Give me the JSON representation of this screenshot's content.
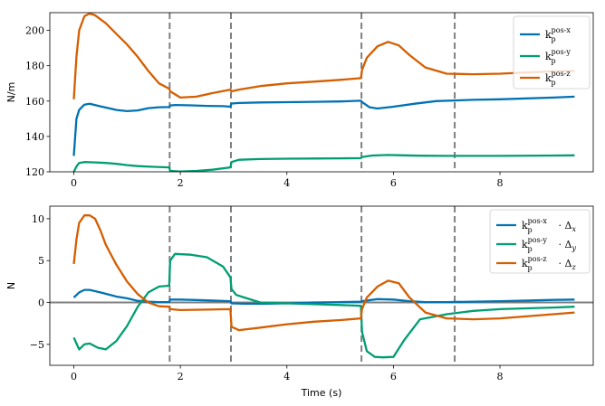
{
  "chart_data": [
    {
      "type": "line",
      "ylabel": "N/m",
      "xlabel": "",
      "xlim": [
        -0.45,
        9.75
      ],
      "ylim": [
        120,
        210
      ],
      "xticks": [
        0,
        2,
        4,
        6,
        8
      ],
      "yticks": [
        120,
        140,
        160,
        180,
        200
      ],
      "legend_position": "top-right",
      "grid": false,
      "vlines": [
        1.8,
        2.95,
        5.4,
        7.15
      ],
      "series": [
        {
          "legend_base": "k",
          "legend_sub": "p",
          "legend_sup": "pos-x",
          "color": "#0072b2",
          "x": [
            0,
            0.05,
            0.1,
            0.2,
            0.3,
            0.5,
            0.8,
            1.0,
            1.2,
            1.4,
            1.6,
            1.79,
            1.81,
            1.9,
            2.2,
            2.5,
            2.8,
            2.94,
            2.96,
            3.1,
            3.5,
            4.0,
            4.5,
            5.0,
            5.39,
            5.41,
            5.55,
            5.7,
            6.0,
            6.4,
            6.8,
            7.5,
            8.0,
            9.0,
            9.4
          ],
          "y": [
            129,
            150,
            155,
            158,
            158.5,
            157,
            155,
            154.3,
            154.7,
            156,
            156.5,
            156.6,
            157.5,
            157.8,
            157.6,
            157.3,
            157.1,
            156.8,
            158.6,
            158.9,
            159.2,
            159.4,
            159.6,
            159.8,
            160.2,
            159.5,
            156.5,
            155.8,
            156.8,
            158.5,
            160,
            160.7,
            161,
            162,
            162.5
          ]
        },
        {
          "legend_base": "k",
          "legend_sub": "p",
          "legend_sup": "pos-y",
          "color": "#009e73",
          "x": [
            0,
            0.05,
            0.1,
            0.2,
            0.4,
            0.6,
            0.8,
            1.0,
            1.2,
            1.5,
            1.79,
            1.81,
            2.0,
            2.3,
            2.6,
            2.94,
            2.96,
            3.1,
            3.5,
            4.0,
            4.5,
            5.0,
            5.39,
            5.41,
            5.6,
            5.9,
            6.2,
            6.5,
            7.0,
            8.0,
            9.0,
            9.4
          ],
          "y": [
            120,
            123,
            125,
            125.5,
            125.3,
            125,
            124.5,
            123.8,
            123.2,
            122.8,
            122.5,
            120.5,
            120.2,
            120.5,
            121.2,
            122.5,
            125.5,
            126.8,
            127.2,
            127.4,
            127.5,
            127.6,
            127.7,
            128.4,
            129.2,
            129.5,
            129.3,
            129.1,
            129,
            129,
            129.2,
            129.3
          ]
        },
        {
          "legend_base": "k",
          "legend_sub": "p",
          "legend_sup": "pos-z",
          "color": "#d55e00",
          "x": [
            0,
            0.05,
            0.1,
            0.2,
            0.3,
            0.4,
            0.6,
            0.8,
            1.0,
            1.2,
            1.4,
            1.6,
            1.79,
            1.81,
            2.0,
            2.3,
            2.6,
            2.94,
            2.96,
            3.1,
            3.5,
            4.0,
            4.5,
            5.0,
            5.39,
            5.41,
            5.5,
            5.7,
            5.9,
            6.1,
            6.3,
            6.6,
            7.0,
            7.5,
            8.0,
            8.5,
            9.0,
            9.4
          ],
          "y": [
            161,
            185,
            200,
            208,
            209.5,
            208.5,
            204,
            198,
            192,
            185,
            177,
            170,
            167,
            165.5,
            162,
            162.5,
            164.5,
            166.5,
            165.5,
            166.5,
            168.5,
            170,
            171,
            172,
            173,
            177.5,
            184.5,
            191,
            193.5,
            191.5,
            186,
            179,
            175.5,
            175.2,
            175.5,
            176.2,
            176.8,
            177
          ]
        }
      ]
    },
    {
      "type": "line",
      "ylabel": "N",
      "xlabel": "Time (s)",
      "xlim": [
        -0.45,
        9.75
      ],
      "ylim": [
        -7.5,
        11.5
      ],
      "xticks": [
        0,
        2,
        4,
        6,
        8
      ],
      "yticks": [
        -5,
        0,
        5,
        10
      ],
      "legend_position": "top-right",
      "grid": false,
      "hline": 0,
      "vlines": [
        1.8,
        2.95,
        5.4,
        7.15
      ],
      "series": [
        {
          "legend_base": "k",
          "legend_sub": "p",
          "legend_sup": "pos-x",
          "legend_delta": "x",
          "color": "#0072b2",
          "x": [
            0,
            0.1,
            0.2,
            0.3,
            0.5,
            0.8,
            1.0,
            1.2,
            1.4,
            1.6,
            1.79,
            1.81,
            2.0,
            2.5,
            2.94,
            2.96,
            3.2,
            3.6,
            4.0,
            4.5,
            5.0,
            5.39,
            5.41,
            5.7,
            6.0,
            6.3,
            6.6,
            7.0,
            7.5,
            8.0,
            9.0,
            9.4
          ],
          "y": [
            0.6,
            1.2,
            1.5,
            1.5,
            1.2,
            0.7,
            0.5,
            0.2,
            0.1,
            0.05,
            0.05,
            0.35,
            0.35,
            0.25,
            0.15,
            -0.1,
            -0.15,
            -0.15,
            -0.1,
            0.0,
            0.05,
            0.1,
            0.15,
            0.4,
            0.35,
            0.15,
            0.05,
            0.05,
            0.1,
            0.15,
            0.3,
            0.35
          ]
        },
        {
          "legend_base": "k",
          "legend_sub": "p",
          "legend_sup": "pos-y",
          "legend_delta": "y",
          "color": "#009e73",
          "x": [
            0,
            0.1,
            0.2,
            0.3,
            0.45,
            0.6,
            0.8,
            1.0,
            1.2,
            1.4,
            1.6,
            1.79,
            1.81,
            1.9,
            2.2,
            2.5,
            2.8,
            2.94,
            2.96,
            3.05,
            3.2,
            3.5,
            4.0,
            4.5,
            5.0,
            5.39,
            5.41,
            5.5,
            5.65,
            5.8,
            6.0,
            6.2,
            6.5,
            7.0,
            7.5,
            8.0,
            9.0,
            9.4
          ],
          "y": [
            -4.2,
            -5.6,
            -5.0,
            -4.9,
            -5.4,
            -5.6,
            -4.6,
            -2.8,
            -0.5,
            1.2,
            1.9,
            2.0,
            5.0,
            5.8,
            5.7,
            5.4,
            4.3,
            3.0,
            1.6,
            0.9,
            0.6,
            0.0,
            -0.1,
            -0.2,
            -0.3,
            -0.4,
            -3.5,
            -5.8,
            -6.5,
            -6.55,
            -6.5,
            -4.5,
            -2.0,
            -1.4,
            -1.0,
            -0.8,
            -0.6,
            -0.5
          ]
        },
        {
          "legend_base": "k",
          "legend_sub": "p",
          "legend_sup": "pos-z",
          "legend_delta": "z",
          "color": "#d55e00",
          "x": [
            0,
            0.05,
            0.1,
            0.2,
            0.3,
            0.4,
            0.5,
            0.6,
            0.8,
            1.0,
            1.2,
            1.4,
            1.6,
            1.79,
            1.81,
            2.0,
            2.5,
            2.94,
            2.96,
            3.1,
            3.5,
            4.0,
            4.5,
            5.0,
            5.39,
            5.41,
            5.5,
            5.7,
            5.9,
            6.1,
            6.3,
            6.6,
            7.0,
            7.5,
            8.0,
            9.0,
            9.4
          ],
          "y": [
            4.6,
            7.5,
            9.5,
            10.4,
            10.4,
            10.0,
            8.6,
            6.9,
            4.5,
            2.5,
            1.0,
            0.0,
            -0.45,
            -0.5,
            -0.8,
            -0.9,
            -0.85,
            -0.8,
            -2.9,
            -3.3,
            -3.0,
            -2.6,
            -2.3,
            -2.1,
            -1.9,
            -0.8,
            0.6,
            1.9,
            2.6,
            2.3,
            0.6,
            -1.2,
            -1.9,
            -2.0,
            -1.9,
            -1.4,
            -1.2
          ]
        }
      ]
    }
  ]
}
